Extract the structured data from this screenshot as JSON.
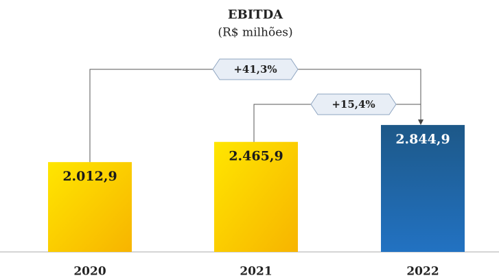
{
  "chart_data": {
    "type": "bar",
    "title": "EBITDA",
    "subtitle": "(R$ milhões)",
    "categories": [
      "2020",
      "2021",
      "2022"
    ],
    "values": [
      2012.9,
      2465.9,
      2844.9
    ],
    "value_labels": [
      "2.012,9",
      "2.465,9",
      "2.844,9"
    ],
    "colors": [
      [
        "#ffe600",
        "#f7b400"
      ],
      [
        "#ffe600",
        "#f7b400"
      ],
      [
        "#1d5888",
        "#2272c2"
      ]
    ],
    "value_label_colors": [
      "#1a1a1a",
      "#1a1a1a",
      "#ffffff"
    ],
    "annotations": [
      "+41,3%",
      "+15,4%"
    ]
  }
}
